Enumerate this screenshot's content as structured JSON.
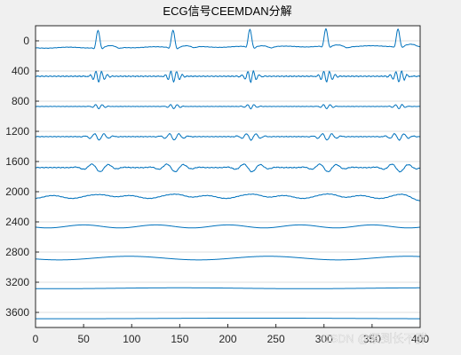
{
  "chart_data": {
    "type": "line",
    "title": "ECG信号CEEMDAN分解",
    "xlabel": "",
    "ylabel": "",
    "xlim": [
      0,
      400
    ],
    "ylim": [
      -200,
      3800
    ],
    "y_reversed": true,
    "x_ticks": [
      0,
      50,
      100,
      150,
      200,
      250,
      300,
      350,
      400
    ],
    "x_tick_labels": [
      "0",
      "50",
      "100",
      "150",
      "200",
      "250",
      "300",
      "350",
      "400"
    ],
    "y_ticks": [
      0,
      400,
      800,
      1200,
      1600,
      2000,
      2400,
      2800,
      3200,
      3600
    ],
    "y_tick_labels": [
      "0",
      "400",
      "800",
      "1200",
      "1600",
      "2000",
      "2400",
      "2800",
      "3200",
      "3600"
    ],
    "grid": "horizontal",
    "background_color": "#f0f0f0",
    "axes_color": "#ffffff",
    "line_color": "#0072bd",
    "grid_color": "#dfdfdf",
    "beat_positions": [
      65,
      143,
      223,
      302,
      377
    ],
    "series": [
      {
        "offset": 80,
        "kind": "ecg",
        "peak_amplitude": 230,
        "peak_width": 1.8,
        "baseline_slope": -0.06,
        "wave_amp": 6,
        "wave_period": 45
      },
      {
        "offset": 470,
        "kind": "oscillation",
        "amplitude": 75,
        "period": 6,
        "envelope_width": 5.5,
        "baseline_noise": 7
      },
      {
        "offset": 870,
        "kind": "small_oscillation",
        "amplitude": 30,
        "period": 7,
        "envelope_width": 5,
        "baseline_noise": 3
      },
      {
        "offset": 1270,
        "kind": "wavelets",
        "amplitude": 45,
        "period": 10,
        "envelope_width": 8,
        "baseline_noise": 5
      },
      {
        "offset": 1680,
        "kind": "broad_wavelets",
        "amplitude": 55,
        "period": 18,
        "envelope_width": 12,
        "baseline_noise": 6
      },
      {
        "offset": 2070,
        "kind": "undulation",
        "amplitude": 42,
        "period": 40,
        "baseline_noise": 4,
        "tail_drop": 40
      },
      {
        "offset": 2460,
        "kind": "slow_wave",
        "amplitude": 20,
        "period": 75
      },
      {
        "offset": 2880,
        "kind": "slow_wave",
        "amplitude": 24,
        "period": 145
      },
      {
        "offset": 3280,
        "kind": "trend",
        "amplitude": 6,
        "period": 260
      },
      {
        "offset": 3680,
        "kind": "trend",
        "amplitude": 4,
        "period": 400
      }
    ]
  },
  "watermark": {
    "text": "CSDN @紧到长不胖"
  }
}
